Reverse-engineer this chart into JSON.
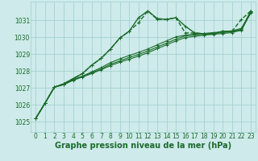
{
  "background_color": "#ceeaea",
  "plot_bg_color": "#ceeaea",
  "grid_color": "#9ecece",
  "line_color": "#1a6b2a",
  "title": "Graphe pression niveau de la mer (hPa)",
  "ylabel_vals": [
    1025,
    1026,
    1027,
    1028,
    1029,
    1030,
    1031
  ],
  "ylim": [
    1024.4,
    1032.1
  ],
  "xlim": [
    -0.5,
    23.5
  ],
  "xticks": [
    0,
    1,
    2,
    3,
    4,
    5,
    6,
    7,
    8,
    9,
    10,
    11,
    12,
    13,
    14,
    15,
    16,
    17,
    18,
    19,
    20,
    21,
    22,
    23
  ],
  "series": [
    {
      "y": [
        1025.2,
        1026.1,
        1027.05,
        1027.25,
        1027.55,
        1027.85,
        1028.35,
        1028.75,
        1029.3,
        1029.95,
        1030.35,
        1031.15,
        1031.55,
        1031.1,
        1031.05,
        1031.15,
        1030.65,
        1030.25,
        1030.2,
        1030.2,
        1030.35,
        1030.35,
        1030.4,
        1031.55
      ],
      "marker": "+",
      "linestyle": "-",
      "linewidth": 1.0,
      "markersize": 3.5
    },
    {
      "y": [
        1025.2,
        1026.1,
        1027.05,
        1027.25,
        1027.55,
        1027.85,
        1028.35,
        1028.75,
        1029.3,
        1029.95,
        1030.35,
        1030.85,
        1031.55,
        1031.05,
        1031.05,
        1031.15,
        1030.25,
        1030.25,
        1030.2,
        1030.2,
        1030.35,
        1030.35,
        1031.05,
        1031.55
      ],
      "marker": "+",
      "linestyle": "--",
      "linewidth": 1.0,
      "markersize": 3.5
    },
    {
      "y": [
        1025.2,
        1026.1,
        1027.05,
        1027.2,
        1027.5,
        1027.7,
        1027.95,
        1028.2,
        1028.5,
        1028.72,
        1028.92,
        1029.1,
        1029.3,
        1029.55,
        1029.78,
        1030.02,
        1030.12,
        1030.18,
        1030.22,
        1030.27,
        1030.32,
        1030.38,
        1030.52,
        1031.52
      ],
      "marker": "+",
      "linestyle": "-",
      "linewidth": 0.8,
      "markersize": 2.5
    },
    {
      "y": [
        1025.2,
        1026.1,
        1027.05,
        1027.2,
        1027.48,
        1027.68,
        1027.9,
        1028.12,
        1028.4,
        1028.6,
        1028.8,
        1028.98,
        1029.18,
        1029.42,
        1029.65,
        1029.88,
        1030.08,
        1030.13,
        1030.18,
        1030.22,
        1030.27,
        1030.32,
        1030.47,
        1031.47
      ],
      "marker": "+",
      "linestyle": "-",
      "linewidth": 0.8,
      "markersize": 2.5
    },
    {
      "y": [
        1025.2,
        1026.1,
        1027.05,
        1027.2,
        1027.45,
        1027.65,
        1027.85,
        1028.08,
        1028.32,
        1028.52,
        1028.7,
        1028.88,
        1029.08,
        1029.32,
        1029.55,
        1029.78,
        1029.98,
        1030.05,
        1030.12,
        1030.17,
        1030.22,
        1030.27,
        1030.42,
        1031.42
      ],
      "marker": "+",
      "linestyle": "-",
      "linewidth": 0.8,
      "markersize": 2.5
    }
  ],
  "font_color": "#1a6b2a",
  "tick_fontsize": 5.5,
  "title_fontsize": 7.0
}
